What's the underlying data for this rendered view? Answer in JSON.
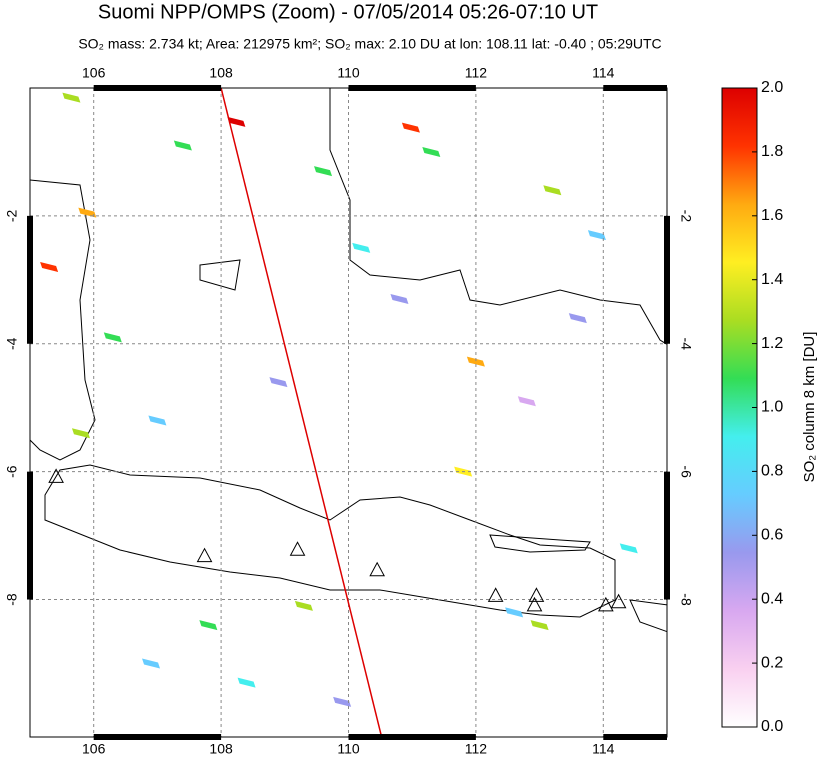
{
  "chart_data": {
    "type": "map",
    "title": "Suomi NPP/OMPS (Zoom) - 07/05/2014 05:26-07:10 UT",
    "subtitle": "SO₂ mass: 2.734 kt; Area: 212975 km²; SO₂ max: 2.10 DU at lon: 108.11 lat: -0.40 ; 05:29UTC",
    "colorbar_label": "SO₂ column 8 km [DU]",
    "xlim": [
      105,
      115
    ],
    "ylim": [
      0,
      -10.15
    ],
    "xticks": [
      106,
      108,
      110,
      112,
      114
    ],
    "yticks": [
      -2,
      -4,
      -6,
      -8
    ],
    "clim": [
      0,
      2
    ],
    "cticks": [
      {
        "value": 0,
        "label": "0.0"
      },
      0.2,
      0.4,
      0.6,
      0.8,
      {
        "value": 1,
        "label": "1.0"
      },
      1.2,
      1.4,
      1.6,
      1.8,
      {
        "value": 2,
        "label": "2.0"
      }
    ],
    "colormap": [
      "#ffffff",
      "#f9d0f0",
      "#d8a8f0",
      "#9999ee",
      "#66ccff",
      "#44eeee",
      "#33dd55",
      "#aadd22",
      "#ffee22",
      "#ffaa11",
      "#ff3300",
      "#dd0000"
    ],
    "orbit_edge": {
      "color": "#dd0000",
      "lon": [
        108.0,
        110.52
      ],
      "lat": [
        0,
        -10.15
      ]
    },
    "volcanoes": {
      "lon": [
        105.41,
        107.74,
        109.2,
        110.45,
        112.31,
        112.95,
        112.92,
        114.04,
        114.24
      ],
      "lat": [
        -6.09,
        -7.33,
        -7.23,
        -7.55,
        -7.95,
        -7.95,
        -8.1,
        -8.1,
        -8.05
      ]
    },
    "pixels": {
      "lon": [
        108.24,
        110.98,
        105.9,
        105.3,
        112.0,
        105.65,
        107.4,
        109.6,
        110.2,
        111.3,
        113.2,
        113.9,
        106.3,
        107.0,
        108.9,
        110.8,
        112.8,
        113.0,
        114.4,
        105.8,
        106.9,
        108.4,
        109.3,
        111.8,
        112.6,
        113.6,
        107.8,
        109.9
      ],
      "lat": [
        -0.53,
        -0.62,
        -1.95,
        -2.8,
        -4.28,
        -0.15,
        -0.9,
        -1.3,
        -2.5,
        -1.0,
        -1.6,
        -2.3,
        -3.9,
        -5.2,
        -4.6,
        -3.3,
        -4.9,
        -8.4,
        -7.2,
        -5.4,
        -9.0,
        -9.3,
        -8.1,
        -6.0,
        -8.2,
        -3.6,
        -8.4,
        -9.6
      ],
      "values": [
        2.1,
        1.85,
        1.7,
        1.75,
        1.6,
        1.2,
        1.15,
        1.1,
        0.9,
        1.0,
        1.2,
        0.7,
        1.1,
        0.8,
        0.6,
        0.5,
        0.4,
        1.3,
        0.9,
        1.2,
        0.7,
        0.9,
        1.3,
        1.4,
        0.8,
        0.6,
        1.0,
        0.5
      ]
    }
  }
}
